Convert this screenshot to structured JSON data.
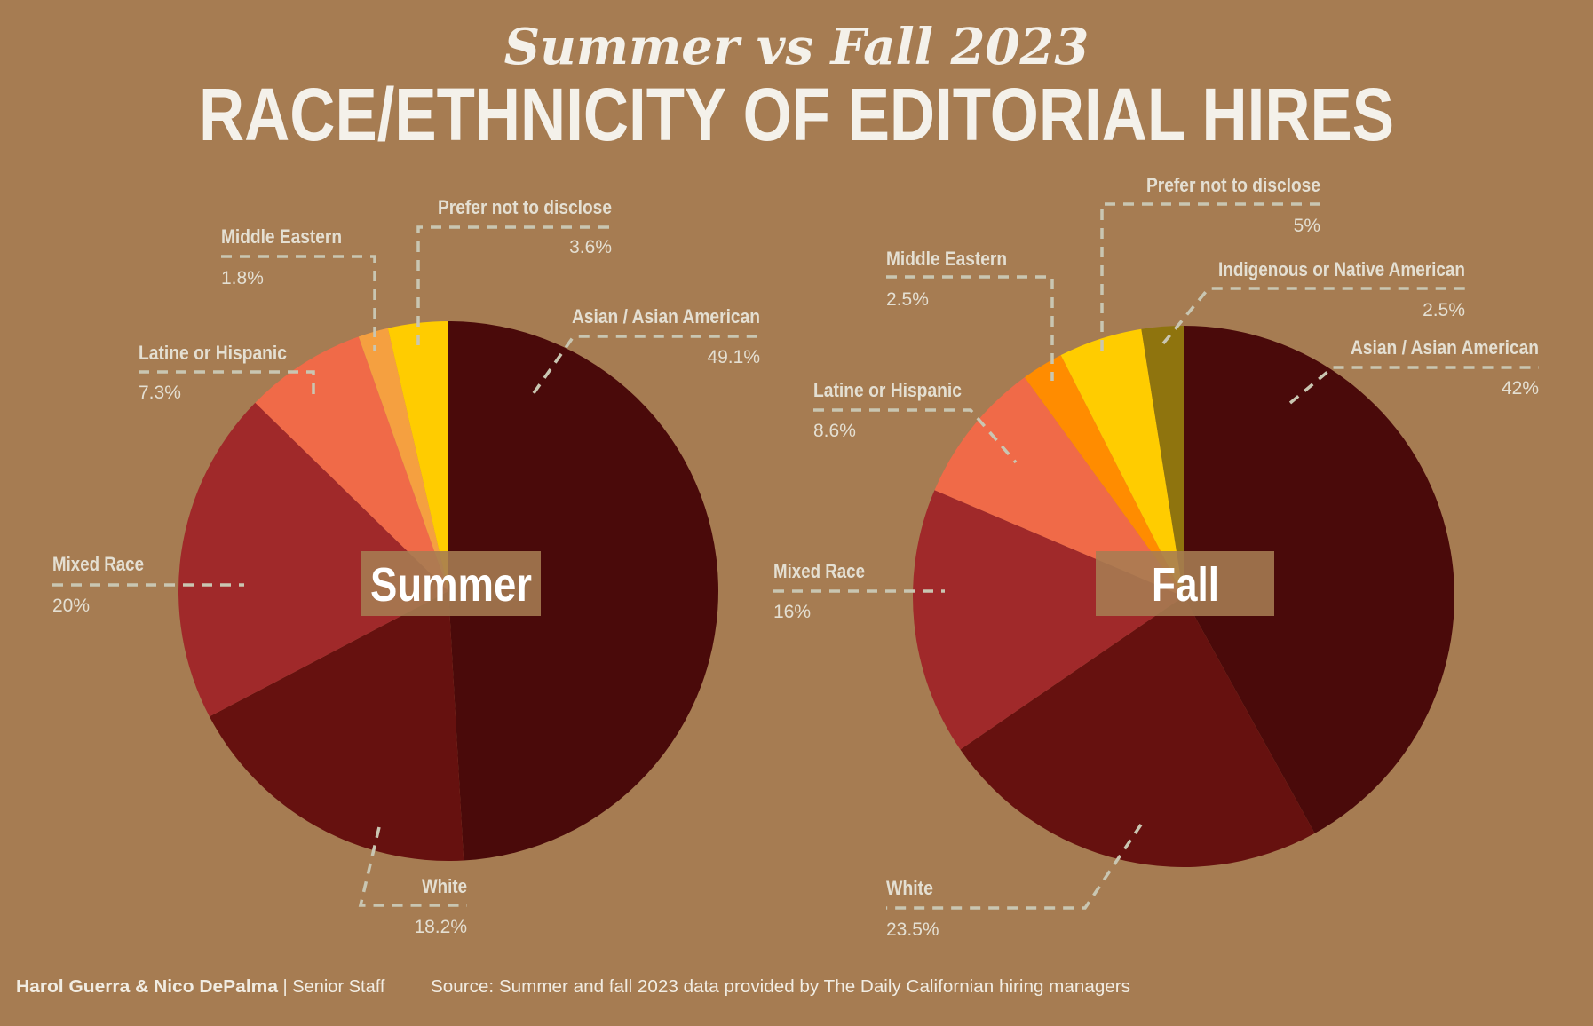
{
  "colors": {
    "background": "#a67c52",
    "text": "#f4f1ea",
    "leader": "#c9c6b2"
  },
  "header": {
    "subtitle": "Summer vs Fall 2023",
    "title": "RACE/ETHNICITY OF EDITORIAL HIRES"
  },
  "chart_data": [
    {
      "type": "pie",
      "center_label": "Summer",
      "start": "12 o'clock, clockwise",
      "categories": [
        "Asian / Asian American",
        "White",
        "Mixed Race",
        "Latine or Hispanic",
        "Middle Eastern",
        "Prefer not to disclose"
      ],
      "values": [
        49.1,
        18.2,
        20,
        7.3,
        1.8,
        3.6
      ],
      "labels": [
        "49.1%",
        "18.2%",
        "20%",
        "7.3%",
        "1.8%",
        "3.6%"
      ],
      "colors": [
        "#4a0a0a",
        "#66110f",
        "#a0292a",
        "#f06a48",
        "#f5a040",
        "#ffcc00"
      ]
    },
    {
      "type": "pie",
      "center_label": "Fall",
      "start": "12 o'clock, clockwise",
      "categories": [
        "Asian / Asian American",
        "White",
        "Mixed Race",
        "Latine or Hispanic",
        "Middle Eastern",
        "Prefer not to disclose",
        "Indigenous or Native American"
      ],
      "values": [
        42,
        23.5,
        16,
        8.6,
        2.5,
        5,
        2.5
      ],
      "labels": [
        "42%",
        "23.5%",
        "16%",
        "8.6%",
        "2.5%",
        "5%",
        "2.5%"
      ],
      "colors": [
        "#4a0a0a",
        "#66110f",
        "#a0292a",
        "#f06a48",
        "#ff8c00",
        "#ffcc00",
        "#8f740e"
      ]
    }
  ],
  "footer": {
    "authors": "Harol Guerra & Nico DePalma",
    "role": " | Senior Staff",
    "source": "Source: Summer and fall 2023 data provided by The Daily Californian hiring managers"
  }
}
